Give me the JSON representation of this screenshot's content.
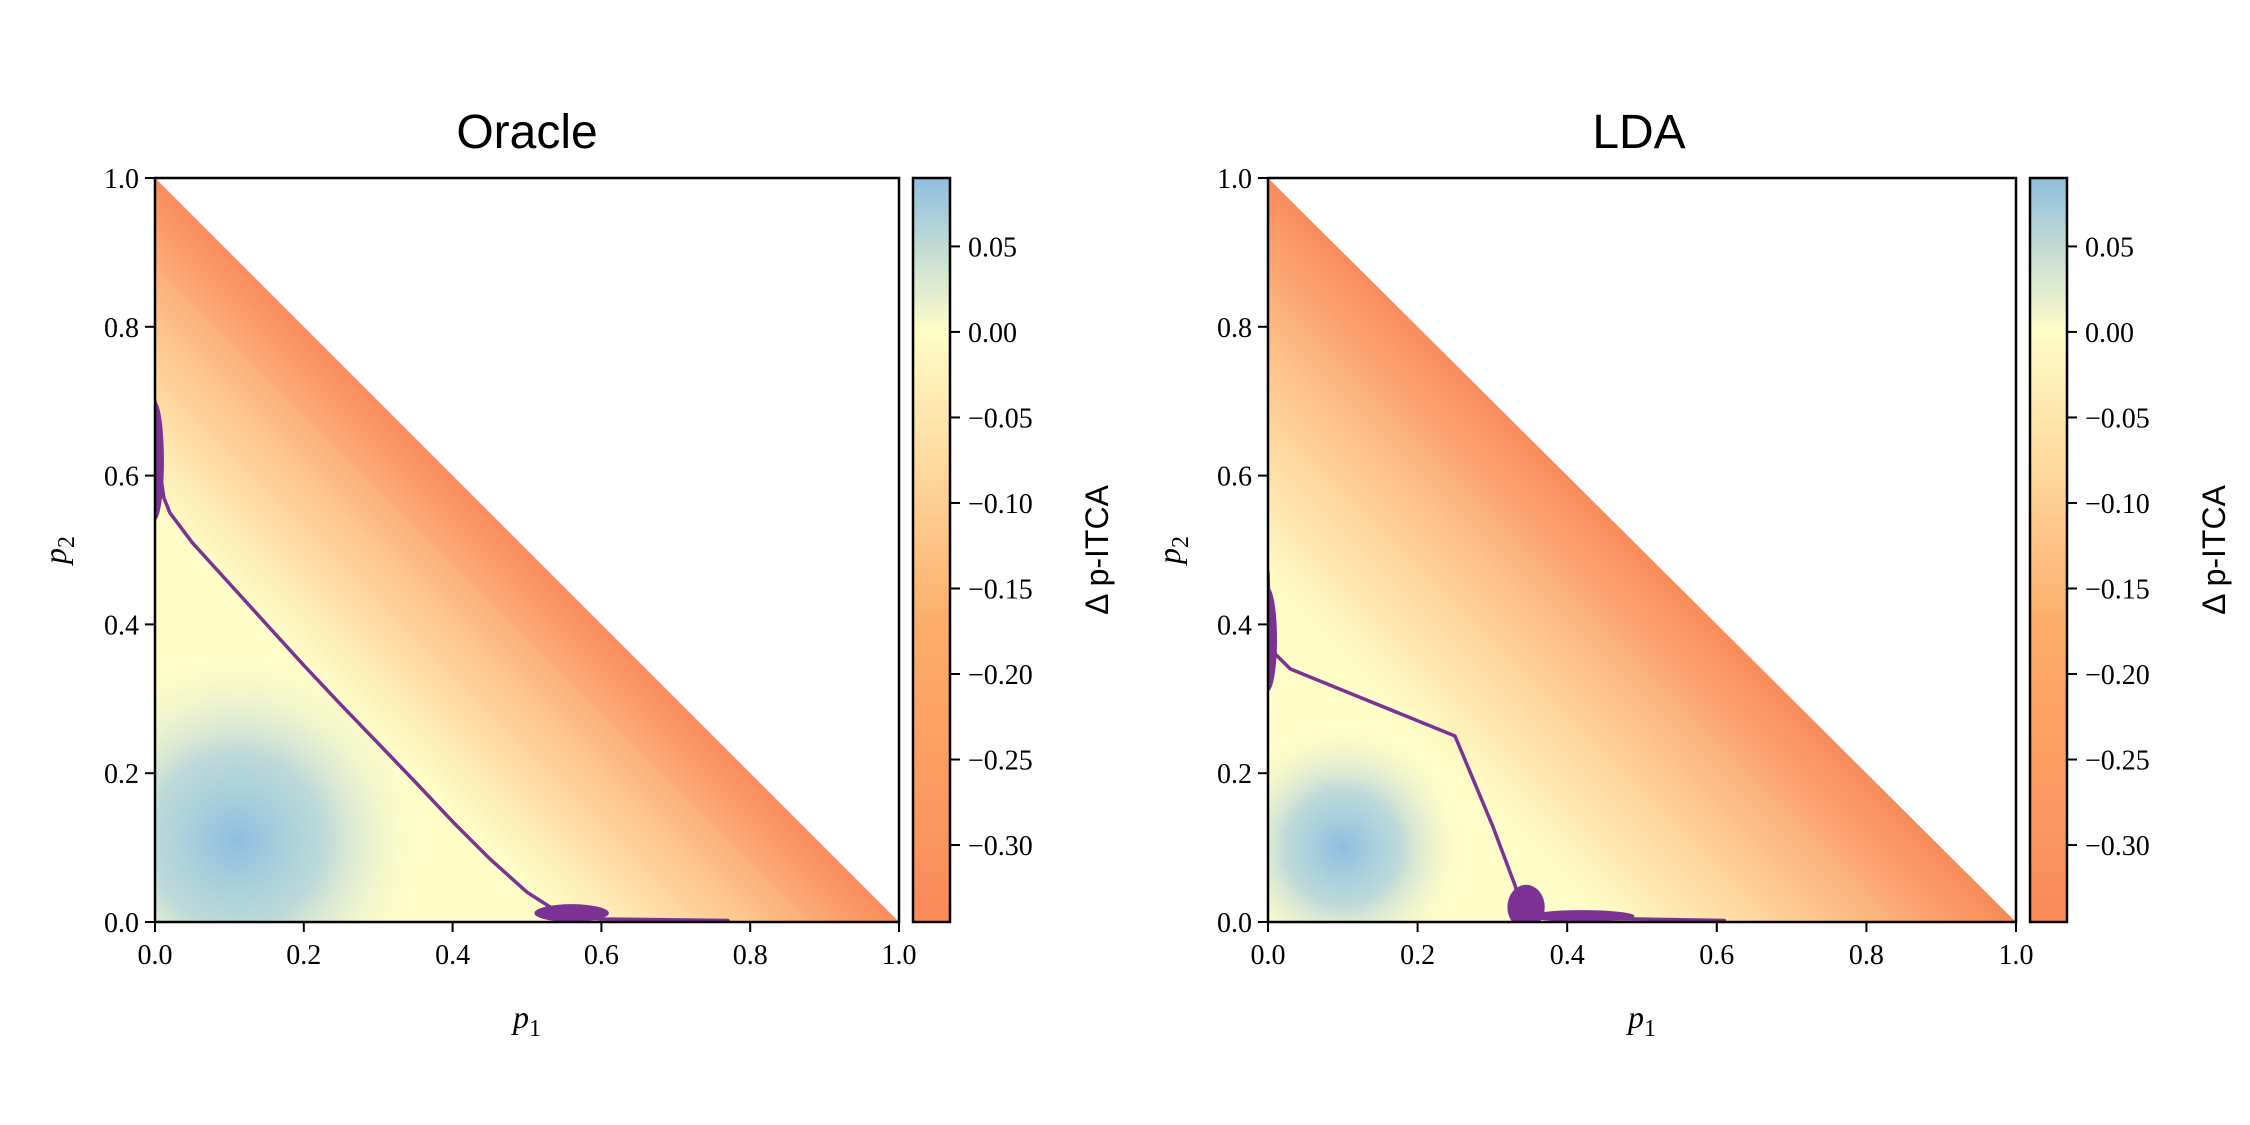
{
  "chart_data": [
    {
      "type": "heatmap",
      "title": "Oracle",
      "xlabel": "p",
      "xlabel_sub": "1",
      "ylabel": "p",
      "ylabel_sub": "2",
      "xlim": [
        0,
        1
      ],
      "ylim": [
        0,
        1
      ],
      "x_ticks": [
        "0.0",
        "0.2",
        "0.4",
        "0.6",
        "0.8",
        "1.0"
      ],
      "y_ticks": [
        "0.0",
        "0.2",
        "0.4",
        "0.6",
        "0.8",
        "1.0"
      ],
      "x_tick_values": [
        0,
        0.2,
        0.4,
        0.6,
        0.8,
        1.0
      ],
      "y_tick_values": [
        0,
        0.2,
        0.4,
        0.6,
        0.8,
        1.0
      ],
      "domain": "simplex p1 + p2 <= 1",
      "colorbar": {
        "label": "Δ p-ITCA",
        "range": [
          -0.345,
          0.09
        ],
        "ticks": [
          "0.05",
          "0.00",
          "−0.05",
          "−0.10",
          "−0.15",
          "−0.20",
          "−0.25",
          "−0.30"
        ],
        "tick_values": [
          0.05,
          0.0,
          -0.05,
          -0.1,
          -0.15,
          -0.2,
          -0.25,
          -0.3
        ],
        "colormap": [
          "#8fbfde",
          "#fffdc8",
          "#fdae6b",
          "#f98b5a"
        ]
      },
      "color_range_estimate": {
        "min": -0.33,
        "max": 0.07
      },
      "boundary_color": "#7b3294",
      "zero_contour": [
        [
          0.0,
          0.7
        ],
        [
          0.003,
          0.63
        ],
        [
          0.012,
          0.57
        ],
        [
          0.02,
          0.55
        ],
        [
          0.05,
          0.51
        ],
        [
          0.1,
          0.455
        ],
        [
          0.15,
          0.4
        ],
        [
          0.2,
          0.345
        ],
        [
          0.25,
          0.292
        ],
        [
          0.3,
          0.24
        ],
        [
          0.35,
          0.188
        ],
        [
          0.4,
          0.135
        ],
        [
          0.45,
          0.085
        ],
        [
          0.5,
          0.04
        ],
        [
          0.55,
          0.008
        ],
        [
          0.6,
          0.004
        ],
        [
          0.77,
          0.002
        ]
      ]
    },
    {
      "type": "heatmap",
      "title": "LDA",
      "xlabel": "p",
      "xlabel_sub": "1",
      "ylabel": "p",
      "ylabel_sub": "2",
      "xlim": [
        0,
        1
      ],
      "ylim": [
        0,
        1
      ],
      "x_ticks": [
        "0.0",
        "0.2",
        "0.4",
        "0.6",
        "0.8",
        "1.0"
      ],
      "y_ticks": [
        "0.0",
        "0.2",
        "0.4",
        "0.6",
        "0.8",
        "1.0"
      ],
      "x_tick_values": [
        0,
        0.2,
        0.4,
        0.6,
        0.8,
        1.0
      ],
      "y_tick_values": [
        0,
        0.2,
        0.4,
        0.6,
        0.8,
        1.0
      ],
      "domain": "simplex p1 + p2 <= 1",
      "colorbar": {
        "label": "Δ p-ITCA",
        "range": [
          -0.345,
          0.09
        ],
        "ticks": [
          "0.05",
          "0.00",
          "−0.05",
          "−0.10",
          "−0.15",
          "−0.20",
          "−0.25",
          "−0.30"
        ],
        "tick_values": [
          0.05,
          0.0,
          -0.05,
          -0.1,
          -0.15,
          -0.2,
          -0.25,
          -0.3
        ],
        "colormap": [
          "#8fbfde",
          "#fffdc8",
          "#fdae6b",
          "#f98b5a"
        ]
      },
      "color_range_estimate": {
        "min": -0.33,
        "max": 0.07
      },
      "boundary_color": "#7b3294",
      "zero_contour": [
        [
          0.0,
          0.47
        ],
        [
          0.002,
          0.4
        ],
        [
          0.01,
          0.36
        ],
        [
          0.03,
          0.34
        ],
        [
          0.25,
          0.25
        ],
        [
          0.3,
          0.13
        ],
        [
          0.33,
          0.05
        ],
        [
          0.34,
          0.015
        ],
        [
          0.37,
          0.006
        ],
        [
          0.61,
          0.002
        ]
      ]
    }
  ]
}
